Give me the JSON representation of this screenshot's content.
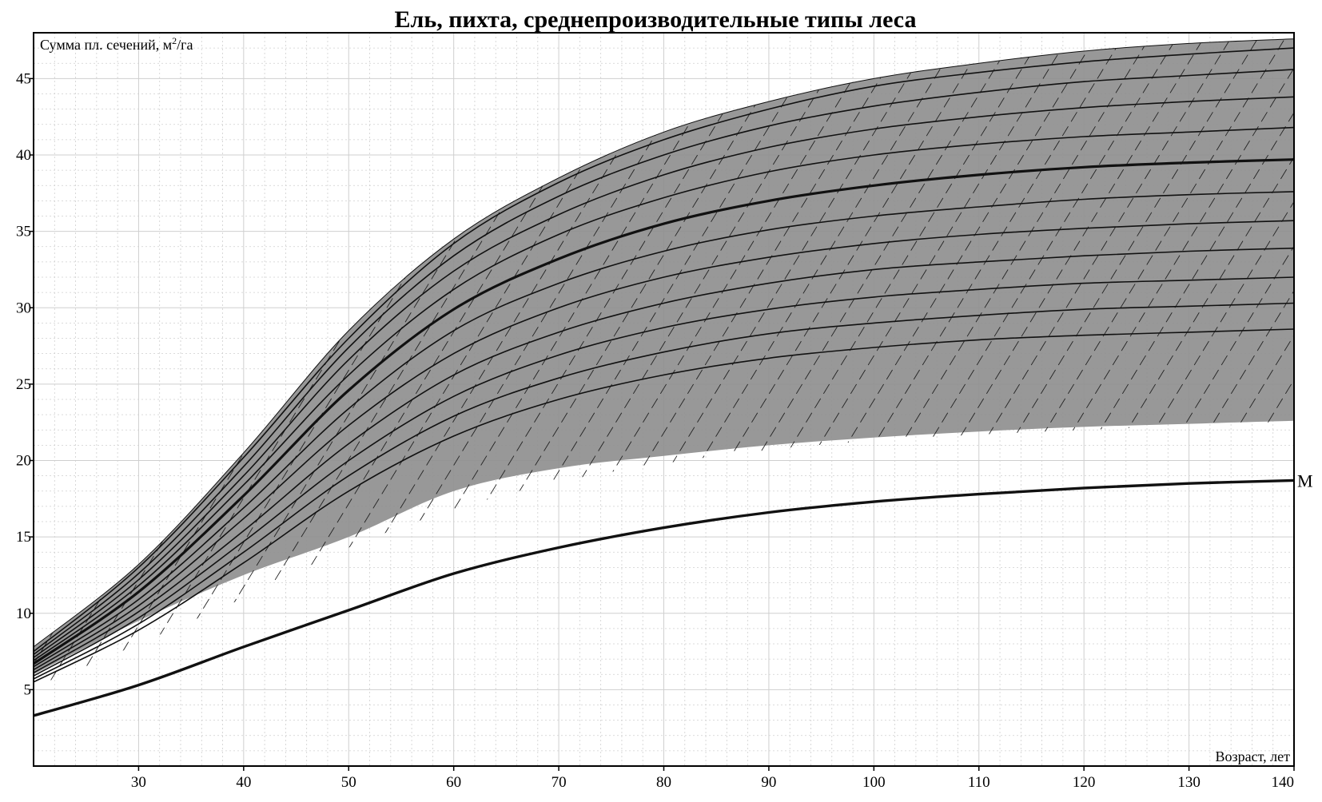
{
  "chart_data": {
    "type": "line",
    "title": "Ель, пихта, среднепроизводительные типы леса",
    "ylabel": "Сумма пл. сечений, м²/га",
    "ylabel_main": "Сумма пл. сечений, м",
    "ylabel_sup": "2",
    "ylabel_tail": "/га",
    "xlabel": "Возраст, лет",
    "xlim": [
      20,
      140
    ],
    "ylim": [
      0,
      48
    ],
    "x_ticks": [
      "30",
      "40",
      "50",
      "60",
      "70",
      "80",
      "90",
      "100",
      "110",
      "120",
      "130",
      "140"
    ],
    "y_ticks": [
      "5",
      "10",
      "15",
      "20",
      "25",
      "30",
      "35",
      "40",
      "45"
    ],
    "grid": true,
    "x": [
      20,
      30,
      40,
      50,
      60,
      70,
      80,
      90,
      100,
      110,
      120,
      130,
      140
    ],
    "band_upper": [
      7.8,
      13.2,
      20.5,
      28.5,
      34.5,
      38.5,
      41.5,
      43.5,
      45.0,
      46.0,
      46.8,
      47.3,
      47.6
    ],
    "band_lower": [
      6.0,
      9.5,
      12.5,
      15.0,
      18.0,
      19.5,
      20.3,
      21.0,
      21.5,
      21.9,
      22.2,
      22.4,
      22.6
    ],
    "hatch_lower": [
      5.0,
      8.0,
      11.0,
      14.3,
      16.8,
      18.6,
      19.8,
      20.7,
      21.3,
      21.7,
      22.0,
      22.3,
      22.5
    ],
    "series": [
      {
        "values": [
          7.5,
          13.0,
          20.2,
          28.0,
          34.2,
          38.2,
          41.0,
          43.0,
          44.5,
          45.4,
          46.1,
          46.6,
          47.0
        ]
      },
      {
        "values": [
          7.3,
          12.6,
          19.6,
          27.4,
          33.4,
          37.3,
          40.0,
          41.9,
          43.2,
          44.1,
          44.8,
          45.2,
          45.6
        ]
      },
      {
        "values": [
          7.1,
          12.2,
          19.0,
          26.6,
          32.4,
          36.1,
          38.7,
          40.5,
          41.7,
          42.5,
          43.1,
          43.5,
          43.8
        ]
      },
      {
        "values": [
          6.9,
          11.8,
          18.4,
          25.6,
          31.2,
          34.8,
          37.2,
          38.9,
          40.0,
          40.7,
          41.2,
          41.5,
          41.8
        ]
      },
      {
        "values": [
          6.7,
          11.4,
          17.7,
          24.6,
          29.9,
          33.2,
          35.5,
          37.0,
          38.0,
          38.7,
          39.2,
          39.5,
          39.7
        ],
        "thick": true
      },
      {
        "values": [
          6.5,
          10.9,
          16.9,
          23.4,
          28.5,
          31.6,
          33.7,
          35.1,
          36.0,
          36.6,
          37.1,
          37.4,
          37.6
        ]
      },
      {
        "values": [
          6.3,
          10.5,
          16.2,
          22.3,
          27.0,
          30.0,
          32.0,
          33.3,
          34.2,
          34.8,
          35.2,
          35.5,
          35.7
        ]
      },
      {
        "values": [
          6.1,
          10.1,
          15.4,
          21.1,
          25.6,
          28.4,
          30.3,
          31.6,
          32.5,
          33.0,
          33.4,
          33.7,
          33.9
        ]
      },
      {
        "values": [
          5.9,
          9.7,
          14.7,
          20.0,
          24.2,
          26.9,
          28.7,
          29.9,
          30.7,
          31.2,
          31.6,
          31.8,
          32.0
        ]
      },
      {
        "values": [
          5.7,
          9.3,
          14.0,
          19.0,
          22.9,
          25.4,
          27.1,
          28.3,
          29.0,
          29.5,
          29.9,
          30.1,
          30.3
        ]
      },
      {
        "values": [
          5.5,
          8.9,
          13.3,
          18.0,
          21.6,
          24.0,
          25.6,
          26.7,
          27.4,
          27.9,
          28.2,
          28.4,
          28.6
        ]
      }
    ],
    "m_curve": {
      "label": "М",
      "values": [
        3.3,
        5.3,
        7.8,
        10.2,
        12.6,
        14.3,
        15.6,
        16.6,
        17.3,
        17.8,
        18.2,
        18.5,
        18.7
      ]
    }
  },
  "colors": {
    "band_fill": "#8f8f8f",
    "grid": "#cfcfcf",
    "line": "#111111",
    "hatch": "#222222",
    "frame": "#000000"
  }
}
